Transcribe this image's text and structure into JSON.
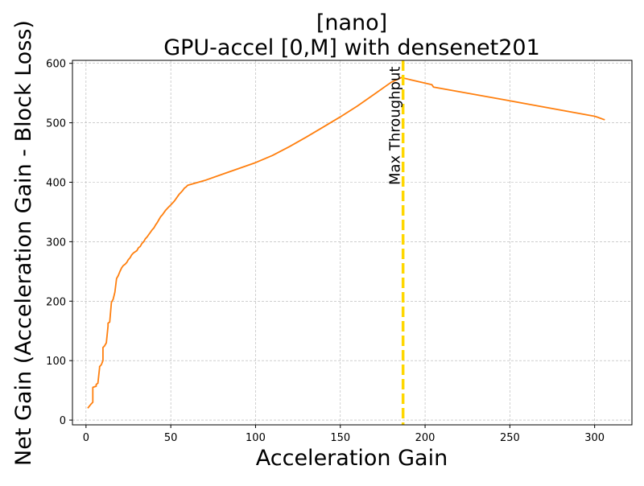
{
  "chart_data": {
    "type": "line",
    "title_line1": "[nano]",
    "title_line2": "GPU-accel [0,M] with densenet201",
    "xlabel": "Acceleration Gain",
    "ylabel": "Net Gain (Acceleration Gain - Block Loss)",
    "xlim": [
      -8,
      322
    ],
    "ylim": [
      -8,
      605
    ],
    "xticks": [
      0,
      50,
      100,
      150,
      200,
      250,
      300
    ],
    "yticks": [
      0,
      100,
      200,
      300,
      400,
      500,
      600
    ],
    "grid": true,
    "series": [
      {
        "color": "#ff7f0e",
        "x": [
          1,
          3,
          4,
          4,
          6,
          6,
          7,
          8,
          8,
          9,
          10,
          10,
          11,
          12,
          13,
          13,
          14,
          15,
          16,
          17,
          18,
          19,
          20,
          21,
          22,
          23,
          24,
          25,
          26,
          27,
          28,
          30,
          31,
          32,
          33,
          34,
          35,
          36,
          37,
          38,
          39,
          40,
          41,
          42,
          43,
          44,
          45,
          46,
          47,
          48,
          49,
          50,
          51,
          52,
          53,
          54,
          55,
          56,
          57,
          58,
          59,
          60,
          70,
          80,
          90,
          100,
          110,
          120,
          130,
          140,
          150,
          160,
          170,
          180,
          186,
          195,
          204,
          205,
          250,
          300,
          302,
          305,
          306
        ],
        "y": [
          20,
          27,
          30,
          55,
          57,
          60,
          62,
          88,
          90,
          93,
          100,
          122,
          125,
          130,
          158,
          163,
          165,
          198,
          203,
          215,
          238,
          243,
          250,
          256,
          260,
          262,
          265,
          270,
          273,
          278,
          281,
          285,
          290,
          292,
          297,
          300,
          305,
          308,
          312,
          316,
          320,
          323,
          328,
          332,
          337,
          342,
          345,
          349,
          353,
          356,
          359,
          362,
          365,
          368,
          372,
          376,
          380,
          383,
          386,
          390,
          392,
          395,
          403,
          413,
          423,
          433,
          445,
          460,
          476,
          493,
          510,
          528,
          548,
          568,
          576,
          570,
          564,
          560,
          537,
          511,
          509,
          506,
          505
        ]
      }
    ],
    "annotations": [
      {
        "type": "vline",
        "x": 187,
        "color": "#ffd700",
        "style": "dashed",
        "label": "Max Throughput"
      }
    ]
  }
}
